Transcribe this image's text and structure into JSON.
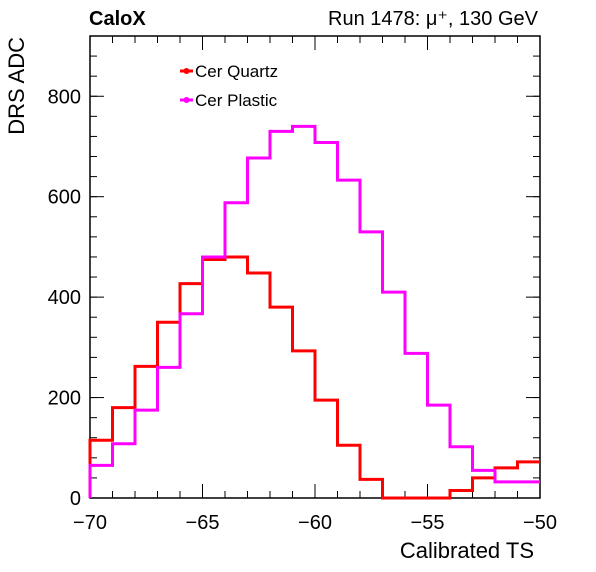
{
  "chart_data": {
    "type": "line",
    "title_left": "CaloX",
    "title_right": "Run 1478:   μ⁺, 130 GeV",
    "xlabel": "Calibrated TS",
    "ylabel": "DRS ADC",
    "xlim": [
      -70,
      -50
    ],
    "ylim": [
      0,
      920
    ],
    "xticks": [
      -70,
      -65,
      -60,
      -55,
      -50
    ],
    "xtick_labels": [
      "−70",
      "−65",
      "−60",
      "−55",
      "−50"
    ],
    "yticks": [
      0,
      200,
      400,
      600,
      800
    ],
    "yminor_step": 40,
    "xminor_step": 1,
    "bin_edges": [
      -70,
      -69,
      -68,
      -67,
      -66,
      -65,
      -64,
      -63,
      -62,
      -61,
      -60,
      -59,
      -58,
      -57,
      -56,
      -55,
      -54,
      -53,
      -52,
      -51,
      -50
    ],
    "series": [
      {
        "name": "Cer Quartz",
        "color": "#ff0000",
        "values": [
          115,
          180,
          262,
          350,
          427,
          475,
          480,
          448,
          380,
          293,
          195,
          105,
          37,
          0,
          0,
          0,
          15,
          40,
          60,
          72
        ]
      },
      {
        "name": "Cer Plastic",
        "color": "#ff00ff",
        "values": [
          65,
          108,
          175,
          260,
          367,
          480,
          588,
          677,
          730,
          740,
          708,
          633,
          530,
          410,
          288,
          185,
          102,
          55,
          32,
          32
        ]
      }
    ],
    "legend_position": "top-left",
    "grid": false
  }
}
